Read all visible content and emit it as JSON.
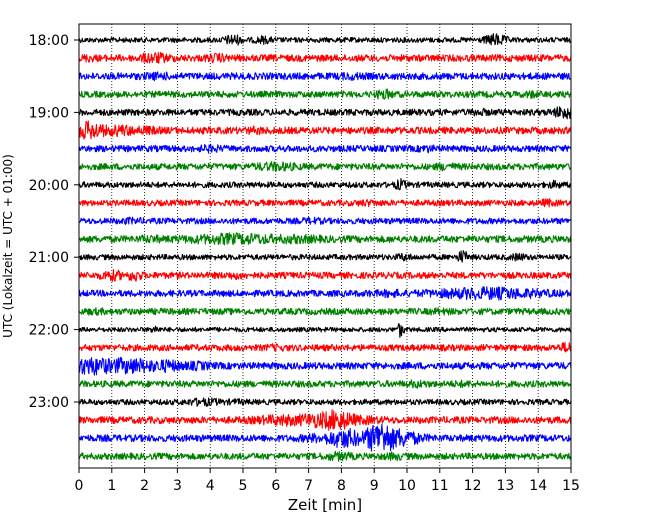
{
  "chart_data": {
    "type": "line",
    "subtype": "helicorder",
    "title": "",
    "xlabel": "Zeit  [min]",
    "ylabel": "UTC (Lokalzeit = UTC + 01:00)",
    "xlim": [
      0,
      15
    ],
    "x_ticks": [
      "0",
      "1",
      "2",
      "3",
      "4",
      "5",
      "6",
      "7",
      "8",
      "9",
      "10",
      "11",
      "12",
      "13",
      "14",
      "15"
    ],
    "y_tick_labels": [
      "18:00",
      "19:00",
      "20:00",
      "21:00",
      "22:00",
      "23:00"
    ],
    "minutes_per_line": 15,
    "grid": "vertical dotted lines at each minute",
    "trace_colors": [
      "#000000",
      "#ff0000",
      "#0000ff",
      "#008000"
    ],
    "traces": [
      {
        "start": "18:00",
        "color": "#000000",
        "amplitude": 0.22,
        "events": [
          {
            "t": 4.7,
            "amp": 0.55,
            "dur": 0.25
          },
          {
            "t": 5.6,
            "amp": 0.4,
            "dur": 0.25
          },
          {
            "t": 12.7,
            "amp": 0.6,
            "dur": 0.3
          }
        ]
      },
      {
        "start": "18:15",
        "color": "#ff0000",
        "amplitude": 0.3,
        "events": [
          {
            "t": 0.3,
            "amp": 0.4,
            "dur": 0.2
          },
          {
            "t": 2.3,
            "amp": 0.55,
            "dur": 0.4
          },
          {
            "t": 4.2,
            "amp": 0.45,
            "dur": 0.3
          }
        ]
      },
      {
        "start": "18:30",
        "color": "#0000ff",
        "amplitude": 0.3,
        "events": [
          {
            "t": 2.4,
            "amp": 0.4,
            "dur": 0.4
          },
          {
            "t": 8.3,
            "amp": 0.4,
            "dur": 0.3
          }
        ]
      },
      {
        "start": "18:45",
        "color": "#008000",
        "amplitude": 0.28,
        "events": [
          {
            "t": 9.3,
            "amp": 0.55,
            "dur": 0.2
          },
          {
            "t": 13.8,
            "amp": 0.4,
            "dur": 0.2
          }
        ]
      },
      {
        "start": "19:00",
        "color": "#000000",
        "amplitude": 0.28,
        "events": [
          {
            "t": 14.8,
            "amp": 0.65,
            "dur": 0.3
          },
          {
            "t": 12.2,
            "amp": 0.4,
            "dur": 0.2
          }
        ]
      },
      {
        "start": "19:15",
        "color": "#ff0000",
        "amplitude": 0.3,
        "events": [
          {
            "t": 0.3,
            "amp": 0.85,
            "dur": 0.5
          },
          {
            "t": 1.2,
            "amp": 0.55,
            "dur": 0.6
          },
          {
            "t": 2.0,
            "amp": 0.45,
            "dur": 0.4
          },
          {
            "t": 5.4,
            "amp": 0.4,
            "dur": 0.3
          }
        ]
      },
      {
        "start": "19:30",
        "color": "#0000ff",
        "amplitude": 0.28,
        "events": [
          {
            "t": 4.0,
            "amp": 0.4,
            "dur": 0.3
          },
          {
            "t": 10.6,
            "amp": 0.4,
            "dur": 0.2
          }
        ]
      },
      {
        "start": "19:45",
        "color": "#008000",
        "amplitude": 0.28,
        "events": [
          {
            "t": 6.0,
            "amp": 0.45,
            "dur": 0.6
          },
          {
            "t": 11.2,
            "amp": 0.4,
            "dur": 0.3
          }
        ]
      },
      {
        "start": "20:00",
        "color": "#000000",
        "amplitude": 0.25,
        "events": [
          {
            "t": 9.8,
            "amp": 0.55,
            "dur": 0.15
          },
          {
            "t": 14.5,
            "amp": 0.4,
            "dur": 0.2
          }
        ]
      },
      {
        "start": "20:15",
        "color": "#ff0000",
        "amplitude": 0.26,
        "events": [
          {
            "t": 8.8,
            "amp": 0.35,
            "dur": 0.3
          },
          {
            "t": 14.3,
            "amp": 0.4,
            "dur": 0.2
          }
        ]
      },
      {
        "start": "20:30",
        "color": "#0000ff",
        "amplitude": 0.26,
        "events": [
          {
            "t": 1.6,
            "amp": 0.35,
            "dur": 0.3
          },
          {
            "t": 7.1,
            "amp": 0.35,
            "dur": 0.3
          }
        ]
      },
      {
        "start": "20:45",
        "color": "#008000",
        "amplitude": 0.3,
        "events": [
          {
            "t": 4.8,
            "amp": 0.55,
            "dur": 1.4
          },
          {
            "t": 6.5,
            "amp": 0.45,
            "dur": 0.8
          },
          {
            "t": 2.2,
            "amp": 0.4,
            "dur": 0.3
          }
        ]
      },
      {
        "start": "21:00",
        "color": "#000000",
        "amplitude": 0.24,
        "events": [
          {
            "t": 9.9,
            "amp": 0.4,
            "dur": 0.2
          },
          {
            "t": 11.7,
            "amp": 0.65,
            "dur": 0.15
          },
          {
            "t": 13.4,
            "amp": 0.4,
            "dur": 0.2
          }
        ]
      },
      {
        "start": "21:15",
        "color": "#ff0000",
        "amplitude": 0.28,
        "events": [
          {
            "t": 1.0,
            "amp": 0.55,
            "dur": 0.3
          },
          {
            "t": 1.7,
            "amp": 0.6,
            "dur": 0.2
          },
          {
            "t": 4.8,
            "amp": 0.4,
            "dur": 0.3
          }
        ]
      },
      {
        "start": "21:30",
        "color": "#0000ff",
        "amplitude": 0.28,
        "events": [
          {
            "t": 12.5,
            "amp": 0.6,
            "dur": 1.6
          },
          {
            "t": 9.5,
            "amp": 0.4,
            "dur": 0.4
          },
          {
            "t": 8.9,
            "amp": 0.35,
            "dur": 0.2
          }
        ]
      },
      {
        "start": "21:45",
        "color": "#008000",
        "amplitude": 0.28,
        "events": [
          {
            "t": 0.5,
            "amp": 0.35,
            "dur": 0.3
          },
          {
            "t": 11.0,
            "amp": 0.35,
            "dur": 0.3
          }
        ]
      },
      {
        "start": "22:00",
        "color": "#000000",
        "amplitude": 0.2,
        "events": [
          {
            "t": 2.3,
            "amp": 0.45,
            "dur": 0.1
          },
          {
            "t": 9.8,
            "amp": 0.7,
            "dur": 0.1
          }
        ]
      },
      {
        "start": "22:15",
        "color": "#ff0000",
        "amplitude": 0.28,
        "events": [
          {
            "t": 14.9,
            "amp": 0.55,
            "dur": 0.2
          },
          {
            "t": 6.0,
            "amp": 0.35,
            "dur": 0.3
          }
        ]
      },
      {
        "start": "22:30",
        "color": "#0000ff",
        "amplitude": 0.3,
        "events": [
          {
            "t": 0.4,
            "amp": 0.85,
            "dur": 0.8
          },
          {
            "t": 1.5,
            "amp": 0.75,
            "dur": 1.0
          },
          {
            "t": 2.6,
            "amp": 0.6,
            "dur": 0.6
          },
          {
            "t": 3.6,
            "amp": 0.45,
            "dur": 0.4
          }
        ]
      },
      {
        "start": "22:45",
        "color": "#008000",
        "amplitude": 0.28,
        "events": [
          {
            "t": 10.3,
            "amp": 0.4,
            "dur": 0.3
          },
          {
            "t": 11.7,
            "amp": 0.35,
            "dur": 0.3
          }
        ]
      },
      {
        "start": "23:00",
        "color": "#000000",
        "amplitude": 0.24,
        "events": [
          {
            "t": 3.8,
            "amp": 0.4,
            "dur": 0.5
          },
          {
            "t": 4.8,
            "amp": 0.3,
            "dur": 0.3
          }
        ]
      },
      {
        "start": "23:15",
        "color": "#ff0000",
        "amplitude": 0.3,
        "events": [
          {
            "t": 6.3,
            "amp": 0.55,
            "dur": 0.8
          },
          {
            "t": 7.3,
            "amp": 0.7,
            "dur": 0.8
          },
          {
            "t": 7.8,
            "amp": 0.95,
            "dur": 0.6
          },
          {
            "t": 8.6,
            "amp": 0.45,
            "dur": 0.5
          }
        ]
      },
      {
        "start": "23:30",
        "color": "#0000ff",
        "amplitude": 0.3,
        "events": [
          {
            "t": 8.1,
            "amp": 0.9,
            "dur": 0.6
          },
          {
            "t": 9.2,
            "amp": 1.5,
            "dur": 0.5
          },
          {
            "t": 9.7,
            "amp": 0.9,
            "dur": 0.6
          },
          {
            "t": 7.2,
            "amp": 0.45,
            "dur": 0.4
          }
        ]
      },
      {
        "start": "23:45",
        "color": "#008000",
        "amplitude": 0.28,
        "events": [
          {
            "t": 7.9,
            "amp": 0.45,
            "dur": 0.4
          },
          {
            "t": 9.6,
            "amp": 0.4,
            "dur": 0.3
          }
        ]
      }
    ]
  }
}
